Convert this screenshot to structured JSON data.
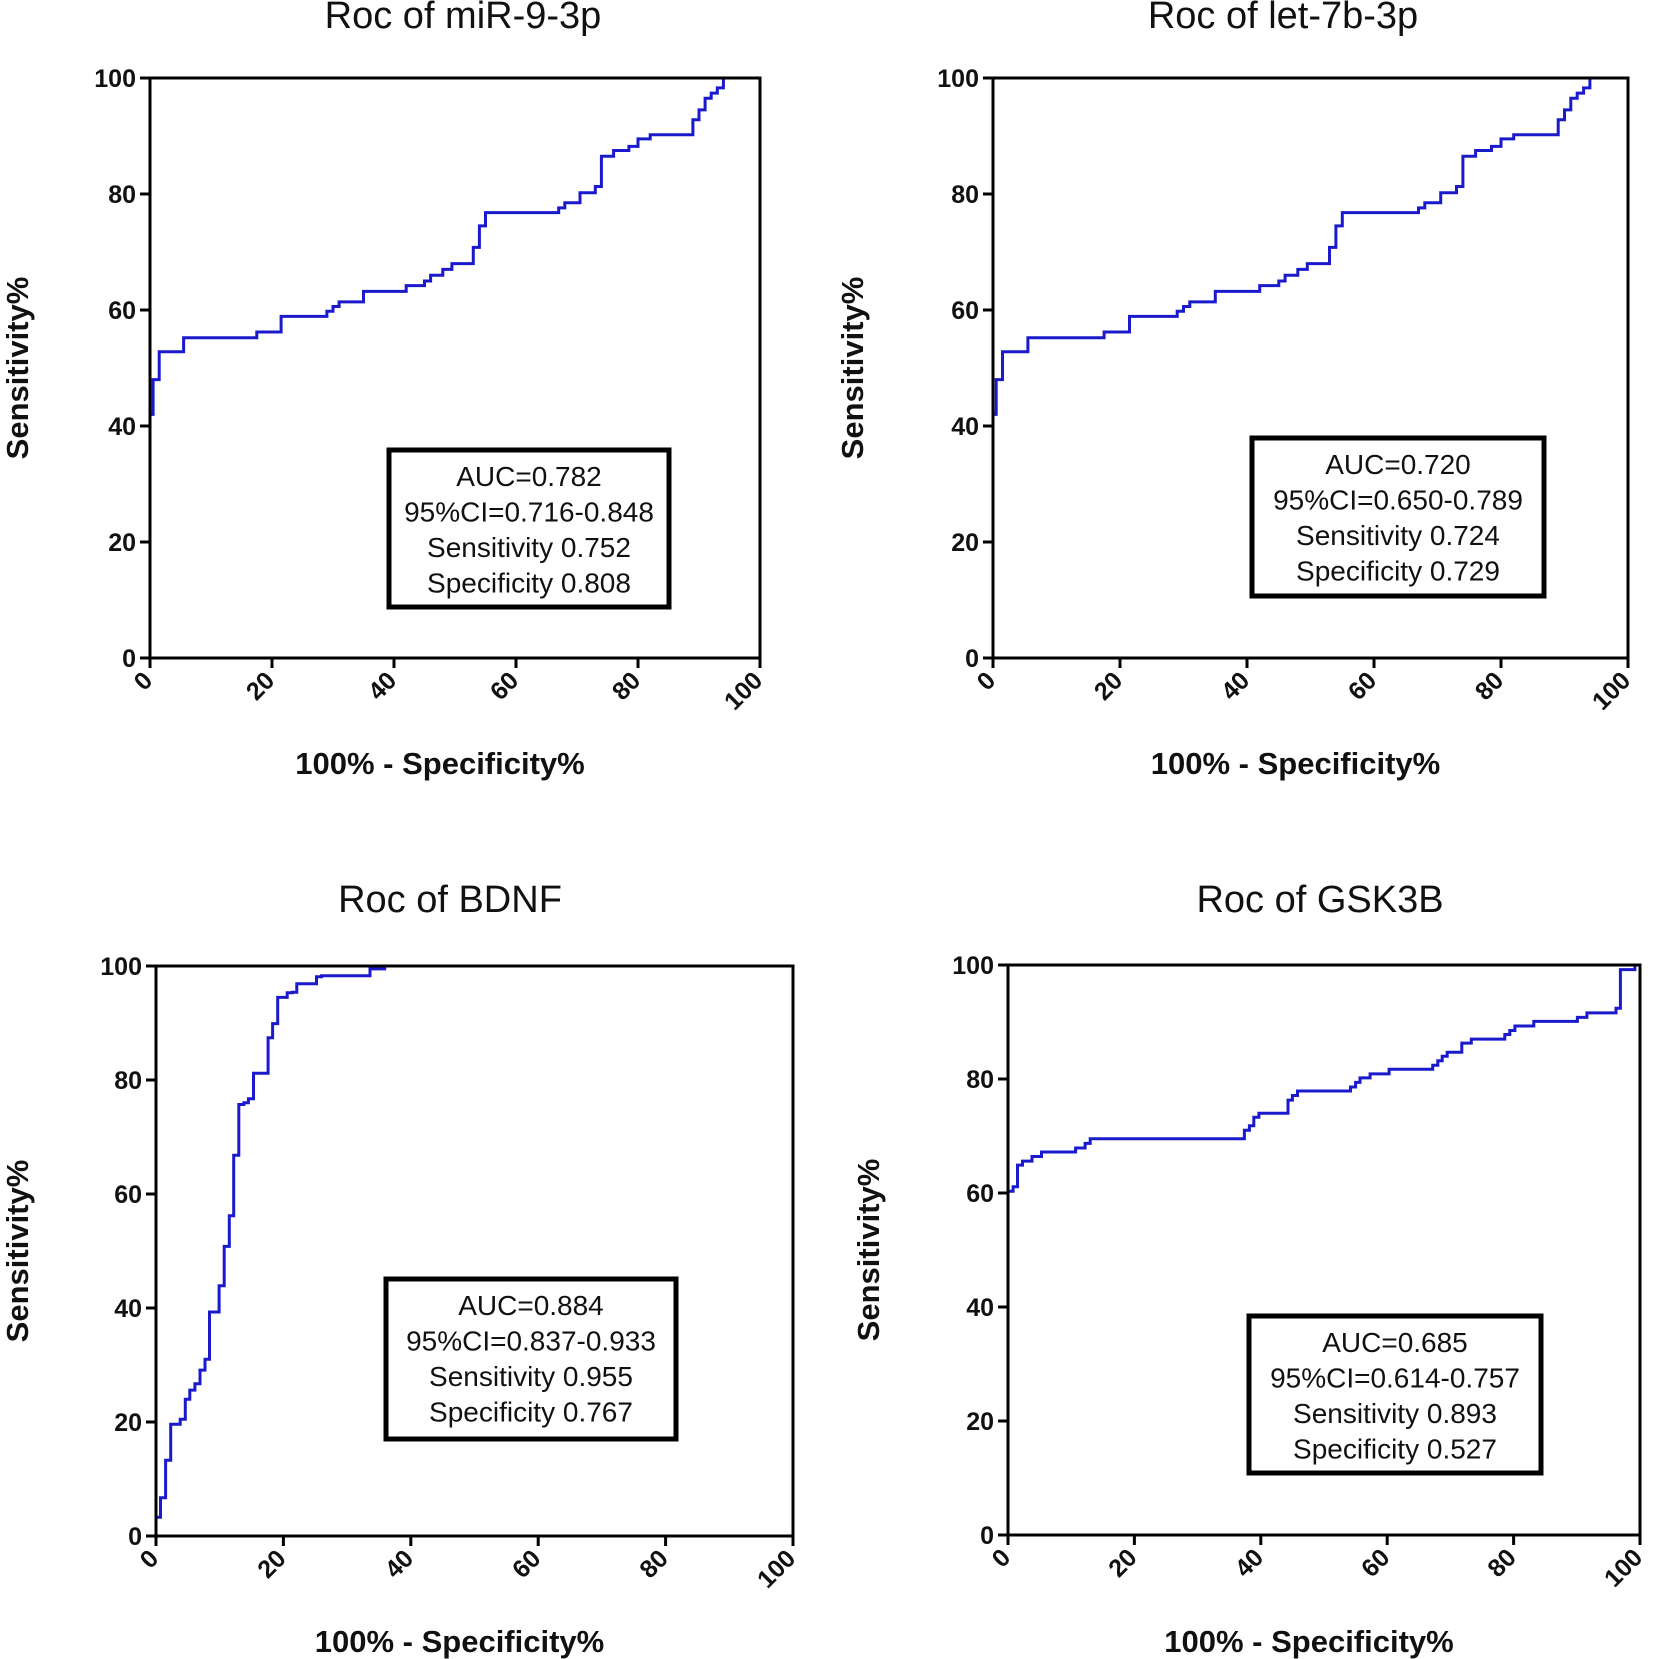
{
  "chart_data": [
    {
      "type": "line",
      "title": "Roc of miR-9-3p",
      "xlabel": "100% - Specificity%",
      "ylabel": "Sensitivity%",
      "xlim": [
        0,
        100
      ],
      "ylim": [
        0,
        100
      ],
      "xticks": [
        "0",
        "20",
        "40",
        "60",
        "80",
        "100"
      ],
      "yticks": [
        "0",
        "20",
        "40",
        "60",
        "80",
        "100"
      ],
      "series_color": "#1a1acc",
      "stats": [
        "AUC=0.782",
        "95%CI=0.716-0.848",
        "Sensitivity 0.752",
        "Specificity 0.808"
      ],
      "series": [
        {
          "name": "miR-9-3p",
          "x": [
            0,
            0,
            0.5,
            0.5,
            1.5,
            1.5,
            5.5,
            5.5,
            17.5,
            17.5,
            21.5,
            21.5,
            29,
            29,
            30,
            30,
            31,
            31,
            35,
            35,
            42,
            42,
            45,
            45,
            46,
            46,
            48,
            48,
            49.5,
            49.5,
            53,
            53,
            54,
            54,
            55,
            55,
            67,
            67,
            68,
            68,
            70.5,
            70.5,
            73,
            73,
            74,
            74,
            76,
            76,
            78.5,
            78.5,
            80,
            80,
            82,
            82,
            89,
            89,
            90,
            90,
            91,
            91,
            92,
            92,
            93,
            93,
            94,
            94,
            100
          ],
          "y": [
            0,
            42,
            42,
            48,
            48,
            52.8,
            52.8,
            55.2,
            55.2,
            56.2,
            56.2,
            58.9,
            58.9,
            59.8,
            59.8,
            60.6,
            60.6,
            61.4,
            61.4,
            63.2,
            63.2,
            64.2,
            64.2,
            65,
            65,
            66,
            66,
            67,
            67,
            68,
            68,
            70.8,
            70.8,
            74.5,
            74.5,
            76.8,
            76.8,
            77.6,
            77.6,
            78.5,
            78.5,
            80.2,
            80.2,
            81.3,
            81.3,
            86.5,
            86.5,
            87.5,
            87.5,
            88.2,
            88.2,
            89.5,
            89.5,
            90.2,
            90.2,
            92.8,
            92.8,
            94.5,
            94.5,
            96.5,
            96.5,
            97.4,
            97.4,
            98.3,
            98.3,
            100,
            100
          ]
        }
      ]
    },
    {
      "type": "line",
      "title": "Roc of let-7b-3p",
      "xlabel": "100% - Specificity%",
      "ylabel": "Sensitivity%",
      "xlim": [
        0,
        100
      ],
      "ylim": [
        0,
        100
      ],
      "xticks": [
        "0",
        "20",
        "40",
        "60",
        "80",
        "100"
      ],
      "yticks": [
        "0",
        "20",
        "40",
        "60",
        "80",
        "100"
      ],
      "series_color": "#1a1acc",
      "stats": [
        "AUC=0.720",
        "95%CI=0.650-0.789",
        "Sensitivity 0.724",
        "Specificity 0.729"
      ],
      "series": [
        {
          "name": "let-7b-3p",
          "x": [
            0,
            0,
            0.5,
            0.5,
            1.5,
            1.5,
            5.5,
            5.5,
            17.5,
            17.5,
            21.5,
            21.5,
            29,
            29,
            30,
            30,
            31,
            31,
            35,
            35,
            42,
            42,
            45,
            45,
            46,
            46,
            48,
            48,
            49.5,
            49.5,
            53,
            53,
            54,
            54,
            55,
            55,
            67,
            67,
            68,
            68,
            70.5,
            70.5,
            73,
            73,
            74,
            74,
            76,
            76,
            78.5,
            78.5,
            80,
            80,
            82,
            82,
            89,
            89,
            90,
            90,
            91,
            91,
            92,
            92,
            93,
            93,
            94,
            94,
            100
          ],
          "y": [
            0,
            42,
            42,
            48,
            48,
            52.8,
            52.8,
            55.2,
            55.2,
            56.2,
            56.2,
            58.9,
            58.9,
            59.8,
            59.8,
            60.6,
            60.6,
            61.4,
            61.4,
            63.2,
            63.2,
            64.2,
            64.2,
            65,
            65,
            66,
            66,
            67,
            67,
            68,
            68,
            70.8,
            70.8,
            74.5,
            74.5,
            76.8,
            76.8,
            77.6,
            77.6,
            78.5,
            78.5,
            80.2,
            80.2,
            81.3,
            81.3,
            86.5,
            86.5,
            87.5,
            87.5,
            88.2,
            88.2,
            89.5,
            89.5,
            90.2,
            90.2,
            92.8,
            92.8,
            94.5,
            94.5,
            96.5,
            96.5,
            97.4,
            97.4,
            98.3,
            98.3,
            100,
            100
          ]
        }
      ]
    },
    {
      "type": "line",
      "title": "Roc of BDNF",
      "xlabel": "100% - Specificity%",
      "ylabel": "Sensitivity%",
      "xlim": [
        0,
        100
      ],
      "ylim": [
        0,
        100
      ],
      "xticks": [
        "0",
        "20",
        "40",
        "60",
        "80",
        "100"
      ],
      "yticks": [
        "0",
        "20",
        "40",
        "60",
        "80",
        "100"
      ],
      "series_color": "#1a1acc",
      "stats": [
        "AUC=0.884",
        "95%CI=0.837-0.933",
        "Sensitivity 0.955",
        "Specificity 0.767"
      ],
      "series": [
        {
          "name": "BDNF",
          "x": [
            0,
            0,
            0.7,
            0.7,
            1.5,
            1.5,
            2.3,
            2.3,
            3.8,
            3.8,
            4.6,
            4.6,
            5.3,
            5.3,
            6.1,
            6.1,
            6.9,
            6.9,
            7.7,
            7.7,
            8.4,
            8.4,
            9.9,
            9.9,
            10.7,
            10.7,
            11.5,
            11.5,
            12.2,
            12.2,
            13,
            13,
            13.8,
            13.8,
            14.5,
            14.5,
            15.3,
            15.3,
            17.6,
            17.6,
            18.3,
            18.3,
            19.1,
            19.1,
            20.6,
            20.6,
            21.4,
            21.4,
            22.1,
            22.1,
            25.2,
            25.2,
            26,
            26,
            33.6,
            33.6,
            35.9,
            35.9,
            100
          ],
          "y": [
            0,
            3.3,
            3.3,
            6.7,
            6.7,
            13.3,
            13.3,
            19.6,
            19.6,
            20.5,
            20.5,
            24,
            24,
            25.6,
            25.6,
            26.7,
            26.7,
            29.1,
            29.1,
            31,
            31,
            39.3,
            39.3,
            43.9,
            43.9,
            50.8,
            50.8,
            56.2,
            56.2,
            66.8,
            66.8,
            75.7,
            75.7,
            76,
            76,
            76.7,
            76.7,
            81.2,
            81.2,
            87.4,
            87.4,
            89.9,
            89.9,
            94.5,
            94.5,
            95.3,
            95.3,
            95.4,
            95.4,
            96.9,
            96.9,
            98.1,
            98.1,
            98.3,
            98.3,
            99.5,
            99.5,
            100,
            100
          ]
        }
      ]
    },
    {
      "type": "line",
      "title": "Roc of GSK3B",
      "xlabel": "100% - Specificity%",
      "ylabel": "Sensitivity%",
      "xlim": [
        0,
        100
      ],
      "ylim": [
        0,
        100
      ],
      "xticks": [
        "0",
        "20",
        "40",
        "60",
        "80",
        "100"
      ],
      "yticks": [
        "0",
        "20",
        "40",
        "60",
        "80",
        "100"
      ],
      "series_color": "#1a1acc",
      "stats": [
        "AUC=0.685",
        "95%CI=0.614-0.757",
        "Sensitivity 0.893",
        "Specificity 0.527"
      ],
      "series": [
        {
          "name": "GSK3B",
          "x": [
            0,
            0,
            0.8,
            0.8,
            1.5,
            1.5,
            2.3,
            2.3,
            3.8,
            3.8,
            5.3,
            5.3,
            10.7,
            10.7,
            12.2,
            12.2,
            13,
            13,
            37.4,
            37.4,
            38.2,
            38.2,
            38.9,
            38.9,
            39.7,
            39.7,
            44.3,
            44.3,
            45,
            45,
            45.8,
            45.8,
            54.2,
            54.2,
            55,
            55,
            55.7,
            55.7,
            57.3,
            57.3,
            60.3,
            60.3,
            67.2,
            67.2,
            68,
            68,
            68.7,
            68.7,
            69.5,
            69.5,
            71.8,
            71.8,
            73.3,
            73.3,
            78.6,
            78.6,
            79.4,
            79.4,
            80.2,
            80.2,
            83.2,
            83.2,
            90.1,
            90.1,
            91.6,
            91.6,
            96.2,
            96.2,
            96.9,
            96.9,
            99.2,
            99.2,
            100
          ],
          "y": [
            0,
            60.3,
            60.3,
            61.1,
            61.1,
            64.9,
            64.9,
            65.6,
            65.6,
            66.4,
            66.4,
            67.2,
            67.2,
            67.9,
            67.9,
            68.7,
            68.7,
            69.5,
            69.5,
            71,
            71,
            71.8,
            71.8,
            73.3,
            73.3,
            74,
            74,
            76.3,
            76.3,
            77.1,
            77.1,
            77.9,
            77.9,
            78.6,
            78.6,
            79.4,
            79.4,
            80.2,
            80.2,
            80.9,
            80.9,
            81.7,
            81.7,
            82.4,
            82.4,
            83.2,
            83.2,
            84,
            84,
            84.7,
            84.7,
            86.3,
            86.3,
            87,
            87,
            87.8,
            87.8,
            88.5,
            88.5,
            89.3,
            89.3,
            90.1,
            90.1,
            90.8,
            90.8,
            91.6,
            91.6,
            92.4,
            92.4,
            99.2,
            99.2,
            100,
            100
          ]
        }
      ]
    }
  ]
}
